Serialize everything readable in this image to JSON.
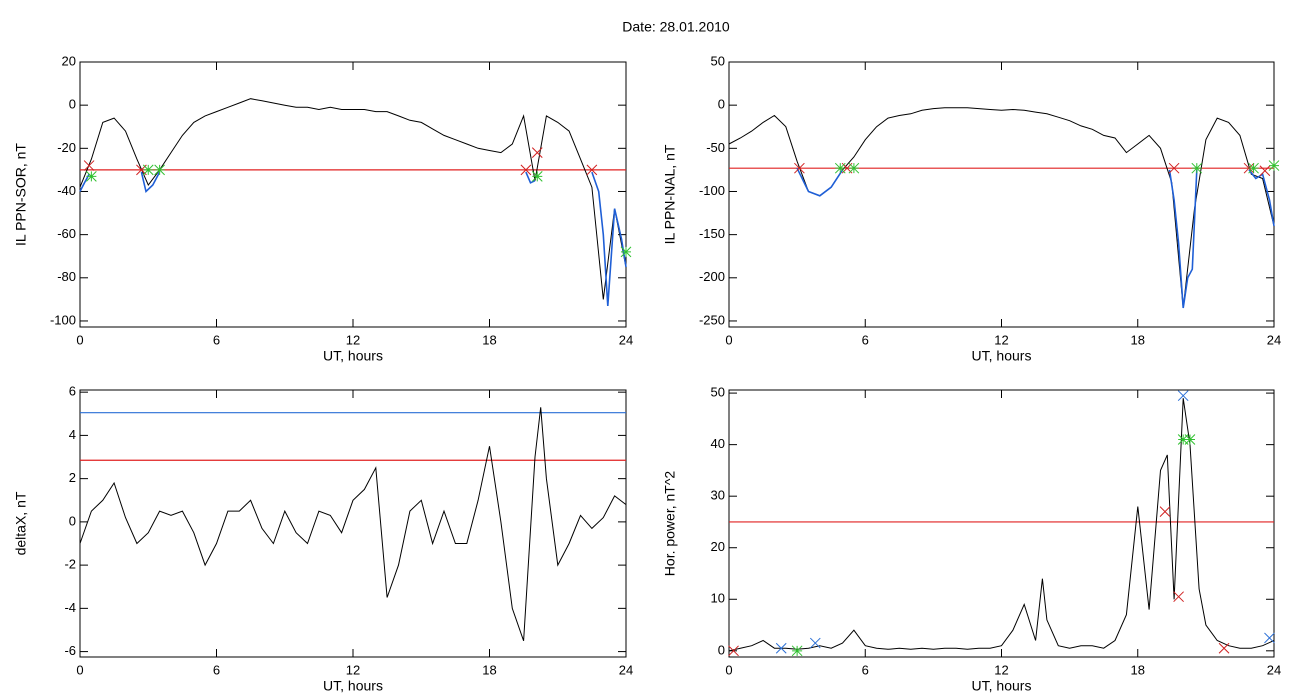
{
  "title": "Date:  28.01.2010",
  "chart_data": [
    {
      "type": "line",
      "ylabel": "IL PPN-SOR, nT",
      "xlabel": "UT, hours",
      "xlim": [
        0,
        24
      ],
      "xticks": [
        0,
        6,
        12,
        18,
        24
      ],
      "ylim": [
        -102.8,
        20
      ],
      "yticks": [
        20,
        0,
        -20,
        -40,
        -60,
        -80,
        -100
      ],
      "x": [
        0,
        0.5,
        1,
        1.5,
        2,
        2.5,
        3,
        3.5,
        4,
        4.5,
        5,
        5.5,
        6,
        6.5,
        7,
        7.5,
        8,
        8.5,
        9,
        9.5,
        10,
        10.5,
        11,
        11.5,
        12,
        12.5,
        13,
        13.5,
        14,
        14.5,
        15,
        15.5,
        16,
        16.5,
        17,
        17.5,
        18,
        18.5,
        19,
        19.5,
        20,
        20.5,
        21,
        21.5,
        22,
        22.5,
        23,
        23.5,
        24
      ],
      "series": [
        {
          "color": "#000000",
          "values": [
            -38,
            -25,
            -8,
            -6,
            -12,
            -25,
            -37,
            -30,
            -22,
            -14,
            -8,
            -5,
            -3,
            -1,
            1,
            3,
            2,
            1,
            0,
            -1,
            -1,
            -2,
            -1,
            -2,
            -2,
            -2,
            -3,
            -3,
            -5,
            -7,
            -8,
            -11,
            -14,
            -16,
            -18,
            -20,
            -21,
            -22,
            -18,
            -5,
            -35,
            -5,
            -8,
            -12,
            -25,
            -38,
            -90,
            -48,
            -75
          ]
        },
        {
          "color": "#1f5fd6",
          "x": [
            0,
            0.2,
            0.4,
            1,
            2.7,
            2.9,
            3.2,
            3.5,
            4,
            19.6,
            19.8,
            20,
            20.3,
            22.5,
            22.8,
            23,
            23.2,
            23.5,
            23.8,
            24
          ],
          "values": [
            -40,
            -36,
            -32,
            null,
            -31,
            -40,
            -37,
            -31,
            null,
            -31,
            -36,
            -35,
            null,
            -31,
            -40,
            -60,
            -93,
            -48,
            -62,
            -75
          ]
        }
      ],
      "hlines": [
        {
          "value": -30,
          "color": "#e02020"
        }
      ],
      "markers": [
        {
          "color": "#d02020",
          "symbol": "x",
          "x": [
            0.4,
            2.7,
            19.6,
            20.1,
            22.5
          ],
          "values": [
            -28,
            -30,
            -30,
            -22,
            -30
          ]
        },
        {
          "color": "#30c030",
          "symbol": "*",
          "x": [
            0.5,
            3,
            3.5,
            20.1,
            24
          ],
          "values": [
            -33,
            -30,
            -30,
            -33,
            -68
          ]
        }
      ]
    },
    {
      "type": "line",
      "ylabel": "IL PPN-NAL, nT",
      "xlabel": "UT, hours",
      "xlim": [
        0,
        24
      ],
      "xticks": [
        0,
        6,
        12,
        18,
        24
      ],
      "ylim": [
        -257,
        50
      ],
      "yticks": [
        50,
        0,
        -50,
        -100,
        -150,
        -200,
        -250
      ],
      "x": [
        0,
        0.5,
        1,
        1.5,
        2,
        2.5,
        3,
        3.5,
        4,
        4.5,
        5,
        5.5,
        6,
        6.5,
        7,
        7.5,
        8,
        8.5,
        9,
        9.5,
        10,
        10.5,
        11,
        11.5,
        12,
        12.5,
        13,
        13.5,
        14,
        14.5,
        15,
        15.5,
        16,
        16.5,
        17,
        17.5,
        18,
        18.5,
        19,
        19.5,
        20,
        20.5,
        21,
        21.5,
        22,
        22.5,
        23,
        23.5,
        24
      ],
      "series": [
        {
          "color": "#000000",
          "values": [
            -45,
            -38,
            -30,
            -20,
            -12,
            -25,
            -65,
            -100,
            -105,
            -95,
            -75,
            -60,
            -40,
            -25,
            -15,
            -12,
            -10,
            -6,
            -4,
            -3,
            -3,
            -3,
            -4,
            -5,
            -6,
            -5,
            -6,
            -8,
            -10,
            -14,
            -18,
            -24,
            -28,
            -35,
            -38,
            -55,
            -45,
            -35,
            -50,
            -90,
            -235,
            -120,
            -40,
            -15,
            -20,
            -35,
            -80,
            -85,
            -140
          ]
        },
        {
          "color": "#1f5fd6",
          "x": [
            3,
            3.5,
            4,
            4.5,
            5,
            5.5,
            19.4,
            19.6,
            19.8,
            20,
            20.2,
            20.4,
            20.6,
            21,
            22.9,
            23.2,
            23.5,
            23.8,
            24
          ],
          "values": [
            -73,
            -100,
            -105,
            -95,
            -75,
            null,
            -75,
            -110,
            -160,
            -235,
            -200,
            -190,
            -75,
            null,
            -75,
            -85,
            -80,
            -110,
            -140
          ]
        }
      ],
      "hlines": [
        {
          "value": -73,
          "color": "#e02020"
        }
      ],
      "markers": [
        {
          "color": "#d02020",
          "symbol": "x",
          "x": [
            3.1,
            5.2,
            19.6,
            22.9,
            23.6
          ],
          "values": [
            -73,
            -73,
            -73,
            -73,
            -76
          ]
        },
        {
          "color": "#30c030",
          "symbol": "*",
          "x": [
            4.9,
            5.5,
            20.6,
            23.1,
            24
          ],
          "values": [
            -73,
            -73,
            -73,
            -73,
            -70
          ]
        }
      ]
    },
    {
      "type": "line",
      "ylabel": "deltaX, nT",
      "xlabel": "UT, hours",
      "xlim": [
        0,
        24
      ],
      "xticks": [
        0,
        6,
        12,
        18,
        24
      ],
      "ylim": [
        -6.25,
        6.1
      ],
      "yticks": [
        6,
        4,
        2,
        0,
        -2,
        -4,
        -6
      ],
      "x": [
        0,
        0.5,
        1,
        1.5,
        2,
        2.5,
        3,
        3.5,
        4,
        4.5,
        5,
        5.5,
        6,
        6.5,
        7,
        7.5,
        8,
        8.5,
        9,
        9.5,
        10,
        10.5,
        11,
        11.5,
        12,
        12.5,
        13,
        13.5,
        14,
        14.5,
        15,
        15.5,
        16,
        16.5,
        17,
        17.5,
        18,
        18.5,
        19,
        19.5,
        20,
        20.25,
        20.5,
        21,
        21.5,
        22,
        22.5,
        23,
        23.5,
        24
      ],
      "series": [
        {
          "color": "#000000",
          "values": [
            -1,
            0.5,
            1,
            1.8,
            0.2,
            -1,
            -0.5,
            0.5,
            0.3,
            0.5,
            -0.5,
            -2,
            -1,
            0.5,
            0.5,
            1,
            -0.3,
            -1,
            0.5,
            -0.5,
            -1,
            0.5,
            0.3,
            -0.5,
            1,
            1.5,
            2.5,
            -3.5,
            -2,
            0.5,
            1,
            -1,
            0.5,
            -1,
            -1,
            1,
            3.5,
            0,
            -4,
            -5.5,
            3,
            5.3,
            2,
            -2,
            -1,
            0.3,
            -0.3,
            0.2,
            1.2,
            0.8
          ]
        }
      ],
      "hlines": [
        {
          "value": 5.05,
          "color": "#2a6fd6"
        },
        {
          "value": 2.85,
          "color": "#e02020"
        }
      ],
      "markers": []
    },
    {
      "type": "line",
      "ylabel": "Hor. power, nT^2",
      "xlabel": "UT, hours",
      "xlim": [
        0,
        24
      ],
      "xticks": [
        0,
        6,
        12,
        18,
        24
      ],
      "ylim": [
        -1.2,
        50.6
      ],
      "yticks": [
        50,
        40,
        30,
        20,
        10,
        0
      ],
      "x": [
        0,
        0.5,
        1,
        1.5,
        2,
        2.5,
        3,
        3.5,
        4,
        4.5,
        5,
        5.5,
        6,
        6.5,
        7,
        7.5,
        8,
        8.5,
        9,
        9.5,
        10,
        10.5,
        11,
        11.5,
        12,
        12.5,
        13,
        13.5,
        13.8,
        14,
        14.5,
        15,
        15.5,
        16,
        16.5,
        17,
        17.5,
        18,
        18.5,
        19,
        19.3,
        19.6,
        20,
        20.3,
        20.7,
        21,
        21.5,
        22,
        22.5,
        23,
        23.5,
        24
      ],
      "series": [
        {
          "color": "#000000",
          "values": [
            0,
            0.5,
            1,
            2,
            0.5,
            0.5,
            0.3,
            0.5,
            1,
            0.5,
            1.5,
            4,
            1,
            0.5,
            0.3,
            0.5,
            0.3,
            0.5,
            0.3,
            0.5,
            0.5,
            0.3,
            0.5,
            0.5,
            1,
            4,
            9,
            2,
            14,
            6,
            1,
            0.5,
            1,
            1,
            0.5,
            2,
            7,
            28,
            8,
            35,
            38,
            10,
            49,
            40,
            12,
            5,
            2,
            1,
            0.5,
            0.5,
            1,
            2
          ]
        }
      ],
      "hlines": [
        {
          "value": 25,
          "color": "#e02020"
        }
      ],
      "markers": [
        {
          "color": "#d02020",
          "symbol": "x",
          "x": [
            0.2,
            19.2,
            19.8,
            21.8
          ],
          "values": [
            0,
            27,
            10.5,
            0.5
          ]
        },
        {
          "color": "#30c030",
          "symbol": "*",
          "x": [
            3,
            20,
            20.3
          ],
          "values": [
            0,
            41,
            41
          ]
        },
        {
          "color": "#2a6fd6",
          "symbol": "x",
          "x": [
            2.3,
            3.8,
            20,
            23.8
          ],
          "values": [
            0.5,
            1.5,
            49.5,
            2.5
          ]
        }
      ]
    }
  ]
}
